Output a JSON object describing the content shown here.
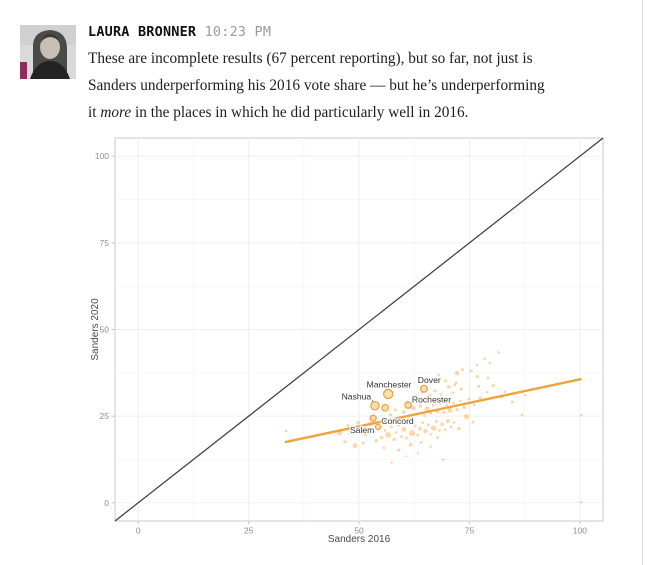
{
  "post": {
    "author": "LAURA BRONNER",
    "timestamp": "10:23 PM",
    "message_lines": [
      [
        {
          "t": "These are incomplete results (67 percent reporting), but so far, not just is"
        }
      ],
      [
        {
          "t": "Sanders underperforming his 2016 vote share — but he’s underperforming"
        }
      ],
      [
        {
          "t": "it "
        },
        {
          "t": "more",
          "italic": true
        },
        {
          "t": " in the places in which he did particularly well in 2016."
        }
      ]
    ]
  },
  "chart_data": {
    "type": "scatter",
    "title": "",
    "xlabel": "Sanders 2016",
    "ylabel": "Sanders 2020",
    "xlim": [
      -5.25,
      105.25
    ],
    "ylim": [
      -5.25,
      105.25
    ],
    "x_ticks": [
      0,
      25,
      50,
      75,
      100
    ],
    "y_ticks": [
      0,
      25,
      50,
      75,
      100
    ],
    "minor_ticks": [
      12.5,
      37.5,
      62.5,
      87.5
    ],
    "grid": true,
    "legend": "none",
    "reference_line": {
      "name": "equal-performance y=x",
      "x1": -5.25,
      "y1": -5.25,
      "x2": 105.25,
      "y2": 105.25
    },
    "trend_line": {
      "name": "fit line",
      "x1": 33.2,
      "y1": 17.5,
      "x2": 100.3,
      "y2": 35.7
    },
    "labeled_cities": [
      {
        "name": "Manchester",
        "x": 56.6,
        "y": 31.4,
        "r": 4.6,
        "label_x": 56.8,
        "label_y": 34.2
      },
      {
        "name": "Dover",
        "x": 64.7,
        "y": 32.9,
        "r": 3.4,
        "label_x": 65.9,
        "label_y": 35.4
      },
      {
        "name": "Nashua",
        "x": 53.6,
        "y": 28.0,
        "r": 4.2,
        "label_x": 49.4,
        "label_y": 30.7,
        "segment": [
          52.9,
          29.8,
          53.4,
          28.8
        ]
      },
      {
        "name": "Rochester",
        "x": 61.1,
        "y": 28.2,
        "r": 3.2,
        "label_x": 66.4,
        "label_y": 29.8,
        "segment": [
          62.5,
          29.2,
          61.7,
          28.6
        ]
      },
      {
        "name": "Concord",
        "x": 53.2,
        "y": 24.4,
        "r": 3.0,
        "label_x": 58.7,
        "label_y": 23.6
      },
      {
        "name": "Salem",
        "x": 54.3,
        "y": 21.9,
        "r": 2.6,
        "label_x": 50.7,
        "label_y": 21.0
      }
    ],
    "ring_points": [
      [
        55.9,
        27.4,
        3.3
      ]
    ],
    "points": [
      [
        33.5,
        20.7,
        1.3
      ],
      [
        45.6,
        20.2,
        2.6
      ],
      [
        46.8,
        17.6,
        1.6
      ],
      [
        48.4,
        20.4,
        3.0
      ],
      [
        49.1,
        16.5,
        2.4
      ],
      [
        47.5,
        22.3,
        1.4
      ],
      [
        49.8,
        23.1,
        1.8
      ],
      [
        50.9,
        17.2,
        1.5
      ],
      [
        51.4,
        19.8,
        2.0
      ],
      [
        50.3,
        21.7,
        1.3
      ],
      [
        57.4,
        11.6,
        1.2
      ],
      [
        69.0,
        12.5,
        1.4
      ],
      [
        63.3,
        14.3,
        1.1
      ],
      [
        59.0,
        15.2,
        1.6
      ],
      [
        66.2,
        16.2,
        1.3
      ],
      [
        61.7,
        16.8,
        1.9
      ],
      [
        64.0,
        17.4,
        1.4
      ],
      [
        55.6,
        15.9,
        1.3
      ],
      [
        53.9,
        17.9,
        1.7
      ],
      [
        67.8,
        18.8,
        1.5
      ],
      [
        52.6,
        22.8,
        2.2
      ],
      [
        53.4,
        20.6,
        1.5
      ],
      [
        55.1,
        18.8,
        1.8
      ],
      [
        55.9,
        20.9,
        1.4
      ],
      [
        56.6,
        19.6,
        2.9
      ],
      [
        57.3,
        21.9,
        1.5
      ],
      [
        57.9,
        18.3,
        1.6
      ],
      [
        58.4,
        20.3,
        1.3
      ],
      [
        58.9,
        22.6,
        2.1
      ],
      [
        59.6,
        19.1,
        1.4
      ],
      [
        60.2,
        21.2,
        2.4
      ],
      [
        60.8,
        18.7,
        1.5
      ],
      [
        61.4,
        22.9,
        1.7
      ],
      [
        62.0,
        20.1,
        3.0
      ],
      [
        62.7,
        22.2,
        1.4
      ],
      [
        63.3,
        19.5,
        1.6
      ],
      [
        63.8,
        21.4,
        1.9
      ],
      [
        64.4,
        23.1,
        1.4
      ],
      [
        65.0,
        20.7,
        2.2
      ],
      [
        65.7,
        22.5,
        1.5
      ],
      [
        66.3,
        19.8,
        1.4
      ],
      [
        66.9,
        21.6,
        2.7
      ],
      [
        67.5,
        23.4,
        1.6
      ],
      [
        68.2,
        20.9,
        1.4
      ],
      [
        68.8,
        22.7,
        1.8
      ],
      [
        69.5,
        21.1,
        1.3
      ],
      [
        70.1,
        23.6,
        2.0
      ],
      [
        70.8,
        21.9,
        1.5
      ],
      [
        71.5,
        23.2,
        1.4
      ],
      [
        74.3,
        24.9,
        2.6
      ],
      [
        75.8,
        23.3,
        1.5
      ],
      [
        72.6,
        21.4,
        1.7
      ],
      [
        60.7,
        13.4,
        1.1
      ],
      [
        57.1,
        25.4,
        1.7
      ],
      [
        58.2,
        26.8,
        1.5
      ],
      [
        59.3,
        24.6,
        1.6
      ],
      [
        60.1,
        26.2,
        1.9
      ],
      [
        61.2,
        25.1,
        1.4
      ],
      [
        62.3,
        27.3,
        2.3
      ],
      [
        63.1,
        25.7,
        1.5
      ],
      [
        63.9,
        27.9,
        1.7
      ],
      [
        64.8,
        25.2,
        1.4
      ],
      [
        65.4,
        27.1,
        2.5
      ],
      [
        66.2,
        25.9,
        1.6
      ],
      [
        66.8,
        28.2,
        1.4
      ],
      [
        67.7,
        26.4,
        2.1
      ],
      [
        68.4,
        28.6,
        1.5
      ],
      [
        69.2,
        26.1,
        1.7
      ],
      [
        69.9,
        28.1,
        1.4
      ],
      [
        70.6,
        26.7,
        2.4
      ],
      [
        71.4,
        28.8,
        1.5
      ],
      [
        72.2,
        26.9,
        1.6
      ],
      [
        72.9,
        29.3,
        1.4
      ],
      [
        73.8,
        27.6,
        1.8
      ],
      [
        74.9,
        29.9,
        1.5
      ],
      [
        76.1,
        28.3,
        1.4
      ],
      [
        77.4,
        30.2,
        1.6
      ],
      [
        62.9,
        30.8,
        1.5
      ],
      [
        64.3,
        31.9,
        1.4
      ],
      [
        66.0,
        30.9,
        1.7
      ],
      [
        67.2,
        32.3,
        1.5
      ],
      [
        68.5,
        31.2,
        1.4
      ],
      [
        66.5,
        35.8,
        1.6
      ],
      [
        68.0,
        36.9,
        1.4
      ],
      [
        69.6,
        35.2,
        1.5
      ],
      [
        70.3,
        33.4,
        1.8
      ],
      [
        71.2,
        31.7,
        1.4
      ],
      [
        72.0,
        34.6,
        1.5
      ],
      [
        71.7,
        34.0,
        1.4
      ],
      [
        73.1,
        32.8,
        1.6
      ],
      [
        73.4,
        38.4,
        1.5
      ],
      [
        75.4,
        38.1,
        1.4
      ],
      [
        76.7,
        39.8,
        1.4
      ],
      [
        72.2,
        37.4,
        2.2
      ],
      [
        76.8,
        36.4,
        1.6
      ],
      [
        79.2,
        36.0,
        1.4
      ],
      [
        78.4,
        41.5,
        1.4
      ],
      [
        81.6,
        43.4,
        1.4
      ],
      [
        79.6,
        40.4,
        1.3
      ],
      [
        77.1,
        33.6,
        1.5
      ],
      [
        79.0,
        31.9,
        1.4
      ],
      [
        80.4,
        33.8,
        1.6
      ],
      [
        83.0,
        32.0,
        1.4
      ],
      [
        87.6,
        31.1,
        1.3
      ],
      [
        82.3,
        30.4,
        1.4
      ],
      [
        84.7,
        29.1,
        1.5
      ],
      [
        86.9,
        25.4,
        1.3
      ],
      [
        100.3,
        25.3,
        1.4
      ],
      [
        100.3,
        0.2,
        1.2
      ]
    ],
    "colors": {
      "point": "#F5A73E",
      "point_opacity": 0.45,
      "ring_fill": "#F6DDB3",
      "ring_stroke": "#EE9E3B",
      "trend": "#F0A33C",
      "reference": "#3F3F3F",
      "grid_major": "#EFEFEF",
      "grid_minor": "#F6F6F6",
      "panel_border": "#C9C9C9",
      "tick_text": "#8E8E8E",
      "axis_title": "#4A4A4A",
      "city_label": "#333333"
    }
  }
}
